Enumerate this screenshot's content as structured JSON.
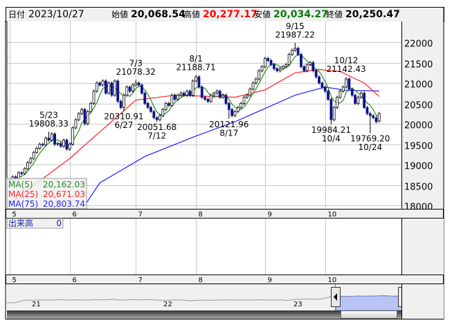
{
  "header": {
    "date_label": "日付",
    "date": "2023/10/27",
    "open_label": "始値",
    "open": "20,068.54",
    "high_label": "高値",
    "high": "20,277.17",
    "low_label": "安値",
    "low": "20,034.27",
    "close_label": "終値",
    "close": "20,250.47"
  },
  "colors": {
    "up_fill": "#ffffff",
    "down_fill": "#101090",
    "ma5": "#228b22",
    "ma25": "#ff2020",
    "ma75": "#2020ff",
    "high_text": "#ff0000",
    "low_text": "#0a7a0a",
    "navigator_fill": "#b8c4f4",
    "grid": "#c8c8c8"
  },
  "legend": [
    {
      "name": "MA(5)",
      "value": "20,162.03"
    },
    {
      "name": "MA(25)",
      "value": "20,671.03"
    },
    {
      "name": "MA(75)",
      "value": "20,803.74"
    }
  ],
  "volume": {
    "label": "出来高",
    "value": "0"
  },
  "navigator": {
    "year_labels": [
      "21",
      "22",
      "23"
    ]
  },
  "chart_data": {
    "type": "candlestick",
    "y_ticks": [
      "22000",
      "21500",
      "21000",
      "20500",
      "20000",
      "19500",
      "19000",
      "18500",
      "18000"
    ],
    "ylim": [
      18000,
      22300
    ],
    "months": [
      {
        "label": "5",
        "start": 0
      },
      {
        "label": "6",
        "start": 20
      },
      {
        "label": "7",
        "start": 42
      },
      {
        "label": "8",
        "start": 62
      },
      {
        "label": "9",
        "start": 85
      },
      {
        "label": "10",
        "start": 105
      }
    ],
    "close": [
      18620,
      18700,
      18650,
      18800,
      18780,
      18900,
      19050,
      19150,
      19300,
      19400,
      19500,
      19480,
      19650,
      19600,
      19750,
      19500,
      19520,
      19450,
      19600,
      19380,
      19500,
      19900,
      20100,
      20250,
      20350,
      20000,
      20300,
      20500,
      20800,
      21000,
      20950,
      21050,
      20750,
      21000,
      20700,
      21050,
      20550,
      20400,
      20700,
      20900,
      20800,
      20950,
      21000,
      20950,
      20750,
      20500,
      20400,
      20300,
      20150,
      20100,
      20200,
      20350,
      20500,
      20450,
      20700,
      20600,
      20700,
      20750,
      20700,
      20800,
      20700,
      21050,
      21150,
      20900,
      20650,
      20600,
      20550,
      20700,
      20750,
      20800,
      20650,
      20700,
      20500,
      20350,
      20200,
      20300,
      20400,
      20500,
      20650,
      20700,
      20850,
      21000,
      21100,
      21300,
      21400,
      21600,
      21550,
      21450,
      21350,
      21300,
      21350,
      21400,
      21450,
      21700,
      21800,
      21850,
      21700,
      21400,
      21300,
      21450,
      21500,
      21300,
      21150,
      21000,
      20900,
      20800,
      20600,
      20100,
      20400,
      20650,
      20800,
      20900,
      21100,
      20850,
      20700,
      20500,
      20650,
      20750,
      20400,
      20250,
      20200,
      20150,
      20050,
      20250
    ],
    "open": [
      18600,
      18620,
      18700,
      18650,
      18800,
      18780,
      18900,
      19050,
      19150,
      19300,
      19400,
      19500,
      19480,
      19650,
      19600,
      19750,
      19500,
      19520,
      19450,
      19600,
      19380,
      19500,
      19900,
      20100,
      20250,
      20350,
      20000,
      20300,
      20500,
      20800,
      21000,
      20950,
      21050,
      20750,
      21000,
      20700,
      21050,
      20550,
      20400,
      20700,
      20900,
      20800,
      20950,
      21000,
      20950,
      20750,
      20500,
      20400,
      20300,
      20150,
      20100,
      20200,
      20350,
      20500,
      20450,
      20700,
      20600,
      20700,
      20750,
      20700,
      20800,
      20700,
      21050,
      21150,
      20900,
      20650,
      20600,
      20550,
      20700,
      20750,
      20800,
      20650,
      20700,
      20500,
      20350,
      20200,
      20300,
      20400,
      20500,
      20650,
      20700,
      20850,
      21000,
      21100,
      21300,
      21400,
      21600,
      21550,
      21450,
      21350,
      21300,
      21350,
      21400,
      21450,
      21700,
      21800,
      21850,
      21700,
      21400,
      21300,
      21450,
      21500,
      21300,
      21150,
      21000,
      20900,
      20800,
      20600,
      20100,
      20400,
      20650,
      20800,
      20900,
      21100,
      20850,
      20700,
      20500,
      20650,
      20750,
      20400,
      20250,
      20200,
      20150,
      20068.54
    ],
    "ma25": [
      [
        0,
        18050
      ],
      [
        20,
        19150
      ],
      [
        30,
        19800
      ],
      [
        42,
        20580
      ],
      [
        55,
        20700
      ],
      [
        75,
        20650
      ],
      [
        85,
        20830
      ],
      [
        95,
        21250
      ],
      [
        103,
        21330
      ],
      [
        110,
        21280
      ],
      [
        118,
        21000
      ],
      [
        123,
        20671.03
      ]
    ],
    "ma75": [
      [
        25,
        18000
      ],
      [
        30,
        18550
      ],
      [
        45,
        19200
      ],
      [
        62,
        19700
      ],
      [
        75,
        20050
      ],
      [
        95,
        20700
      ],
      [
        105,
        20900
      ],
      [
        112,
        20820
      ],
      [
        123,
        20803.74
      ]
    ],
    "annotations": [
      {
        "index": 13,
        "date": "5/23",
        "value": "19808.33",
        "pos": "above"
      },
      {
        "index": 38,
        "date": "6/27",
        "value": "20310.91",
        "pos": "below"
      },
      {
        "index": 42,
        "date": "7/3",
        "value": "21078.32",
        "pos": "above"
      },
      {
        "index": 49,
        "date": "7/12",
        "value": "20051.68",
        "pos": "below"
      },
      {
        "index": 62,
        "date": "8/1",
        "value": "21188.71",
        "pos": "above"
      },
      {
        "index": 73,
        "date": "8/17",
        "value": "20121.96",
        "pos": "below"
      },
      {
        "index": 95,
        "date": "9/15",
        "value": "21987.22",
        "pos": "above"
      },
      {
        "index": 107,
        "date": "10/4",
        "value": "19984.21",
        "pos": "below"
      },
      {
        "index": 112,
        "date": "10/12",
        "value": "21142.43",
        "pos": "above"
      },
      {
        "index": 120,
        "date": "10/24",
        "value": "19769.20",
        "pos": "below"
      }
    ],
    "navigator_series": [
      0.4,
      0.42,
      0.6,
      0.58,
      0.62,
      0.6,
      0.64,
      0.6,
      0.62,
      0.6,
      0.63,
      0.62,
      0.66,
      0.6,
      0.63,
      0.62,
      0.64,
      0.6,
      0.58,
      0.62,
      0.6,
      0.55,
      0.6,
      0.58,
      0.6,
      0.62,
      0.6,
      0.6,
      0.61,
      0.62,
      0.6,
      0.62,
      0.58,
      0.66,
      0.68,
      0.66,
      0.7,
      0.86,
      0.88,
      0.86,
      0.9,
      0.88,
      0.9,
      0.92,
      0.88,
      0.9
    ]
  }
}
